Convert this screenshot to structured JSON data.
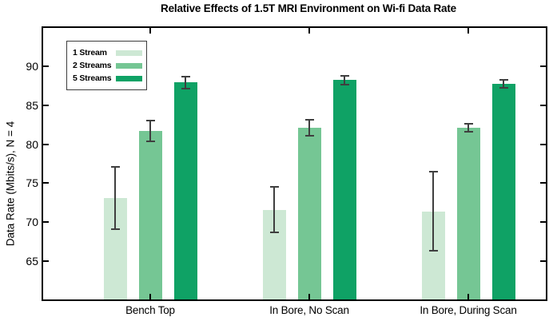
{
  "chart_data": {
    "type": "bar",
    "title": "Relative Effects of 1.5T MRI Environment on Wi-fi Data Rate",
    "xlabel": "",
    "ylabel": "Data Rate (Mbits/s), N = 4",
    "categories": [
      "Bench Top",
      "In Bore, No Scan",
      "In Bore, During Scan"
    ],
    "series": [
      {
        "name": "1 Stream",
        "color": "#cde8d4",
        "values": [
          73.1,
          71.6,
          71.4
        ],
        "errors": [
          4.0,
          2.9,
          5.1
        ]
      },
      {
        "name": "2 Streams",
        "color": "#75c694",
        "values": [
          81.7,
          82.1,
          82.1
        ],
        "errors": [
          1.3,
          1.0,
          0.5
        ]
      },
      {
        "name": "5 Streams",
        "color": "#0fa265",
        "values": [
          87.9,
          88.2,
          87.7
        ],
        "errors": [
          0.8,
          0.6,
          0.5
        ]
      }
    ],
    "ylim": [
      60,
      95
    ],
    "yticks": [
      65,
      70,
      75,
      80,
      85,
      90
    ],
    "grid": false,
    "legend_position": "top-left",
    "error_bar_color": "#3f3f3f",
    "axis_color": "#000000",
    "background_color": "#ffffff"
  }
}
